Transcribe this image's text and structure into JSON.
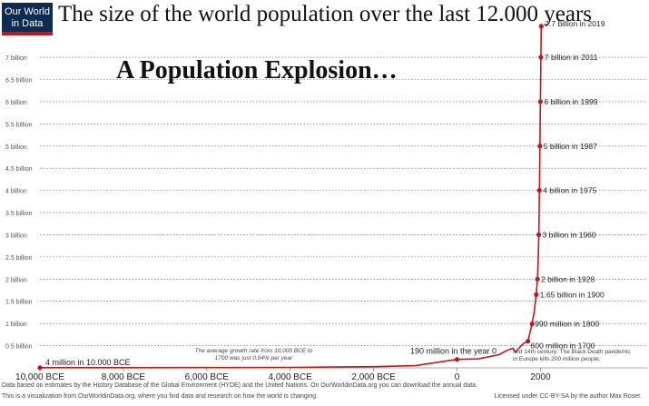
{
  "logo": {
    "line1": "Our World",
    "line2": "in Data",
    "brand_color": "#0f2b52",
    "accent_color": "#c4161c"
  },
  "title": "The size of the world population over the last 12.000 years",
  "headline": "A Population Explosion…",
  "footer": {
    "source": "Data based on estimates by the History Database of the Global Environment (HYDE) and the United Nations. On OurWorldinData.org you can download the annual data.",
    "visualization": "This is a visualization from OurWorldinData.org, where you find data and research on how the world is changing.",
    "license": "Licensed under CC-BY-SA by the author Max Roser."
  },
  "notes": {
    "growth_rate": "The average growth rate from 10,000 BCE to 1700 was just 0.04% per year",
    "black_death": "Mid 14th century: The Black Death pandemic in Europe kills 200 million people."
  },
  "chart_data": {
    "type": "line",
    "line_color": "#c4161c",
    "x_ticks": [
      {
        "value": -10000,
        "label": "10,000 BCE"
      },
      {
        "value": -8000,
        "label": "8,000 BCE"
      },
      {
        "value": -6000,
        "label": "6,000 BCE"
      },
      {
        "value": -4000,
        "label": "4,000 BCE"
      },
      {
        "value": -2000,
        "label": "2,000 BCE"
      },
      {
        "value": 0,
        "label": "0"
      },
      {
        "value": 2000,
        "label": "2000"
      }
    ],
    "y_ticks": [
      {
        "value": 0.5,
        "label": "0.5 billion"
      },
      {
        "value": 1,
        "label": "1 billion"
      },
      {
        "value": 1.5,
        "label": "1.5 billion"
      },
      {
        "value": 2,
        "label": "2 billion"
      },
      {
        "value": 2.5,
        "label": "2.5 billion"
      },
      {
        "value": 3,
        "label": "3 billion"
      },
      {
        "value": 3.5,
        "label": "3.5 billion"
      },
      {
        "value": 4,
        "label": "4 billion"
      },
      {
        "value": 4.5,
        "label": "4.5 billion"
      },
      {
        "value": 5,
        "label": "5 billion"
      },
      {
        "value": 5.5,
        "label": "5.5 billion"
      },
      {
        "value": 6,
        "label": "6 billion"
      },
      {
        "value": 6.5,
        "label": "6.5 billion"
      },
      {
        "value": 7,
        "label": "7 billion"
      }
    ],
    "xlim": [
      -10000,
      2100
    ],
    "ylim": [
      0,
      7.8
    ],
    "grid": true,
    "series_x": [
      -10000,
      -8000,
      -6000,
      -4000,
      -2000,
      -1000,
      0,
      500,
      1000,
      1200,
      1340,
      1400,
      1500,
      1600,
      1700,
      1800,
      1850,
      1900,
      1928,
      1950,
      1960,
      1975,
      1987,
      1999,
      2011,
      2019
    ],
    "series_y": [
      0.004,
      0.005,
      0.007,
      0.01,
      0.027,
      0.05,
      0.19,
      0.2,
      0.295,
      0.393,
      0.443,
      0.35,
      0.461,
      0.554,
      0.6,
      0.99,
      1.262,
      1.65,
      2.0,
      2.53,
      3.0,
      4.0,
      5.0,
      6.0,
      7.0,
      7.7
    ],
    "points": [
      {
        "x": -10000,
        "y": 0.004,
        "label": "4 million in 10.000 BCE"
      },
      {
        "x": 0,
        "y": 0.19,
        "label": "190 million in the year 0"
      },
      {
        "x": 1700,
        "y": 0.6,
        "label": "600 million in 1700"
      },
      {
        "x": 1800,
        "y": 0.99,
        "label": "990 million in 1800"
      },
      {
        "x": 1900,
        "y": 1.65,
        "label": "1.65 billion in 1900"
      },
      {
        "x": 1928,
        "y": 2.0,
        "label": "2 billion in 1928"
      },
      {
        "x": 1960,
        "y": 3.0,
        "label": "3 billion in 1960"
      },
      {
        "x": 1975,
        "y": 4.0,
        "label": "4 billion in 1975"
      },
      {
        "x": 1987,
        "y": 5.0,
        "label": "5 billion in 1987"
      },
      {
        "x": 1999,
        "y": 6.0,
        "label": "6 billion in 1999"
      },
      {
        "x": 2011,
        "y": 7.0,
        "label": "7 billion in 2011"
      },
      {
        "x": 2019,
        "y": 7.7,
        "label": "7.7 billion in 2019"
      }
    ]
  }
}
